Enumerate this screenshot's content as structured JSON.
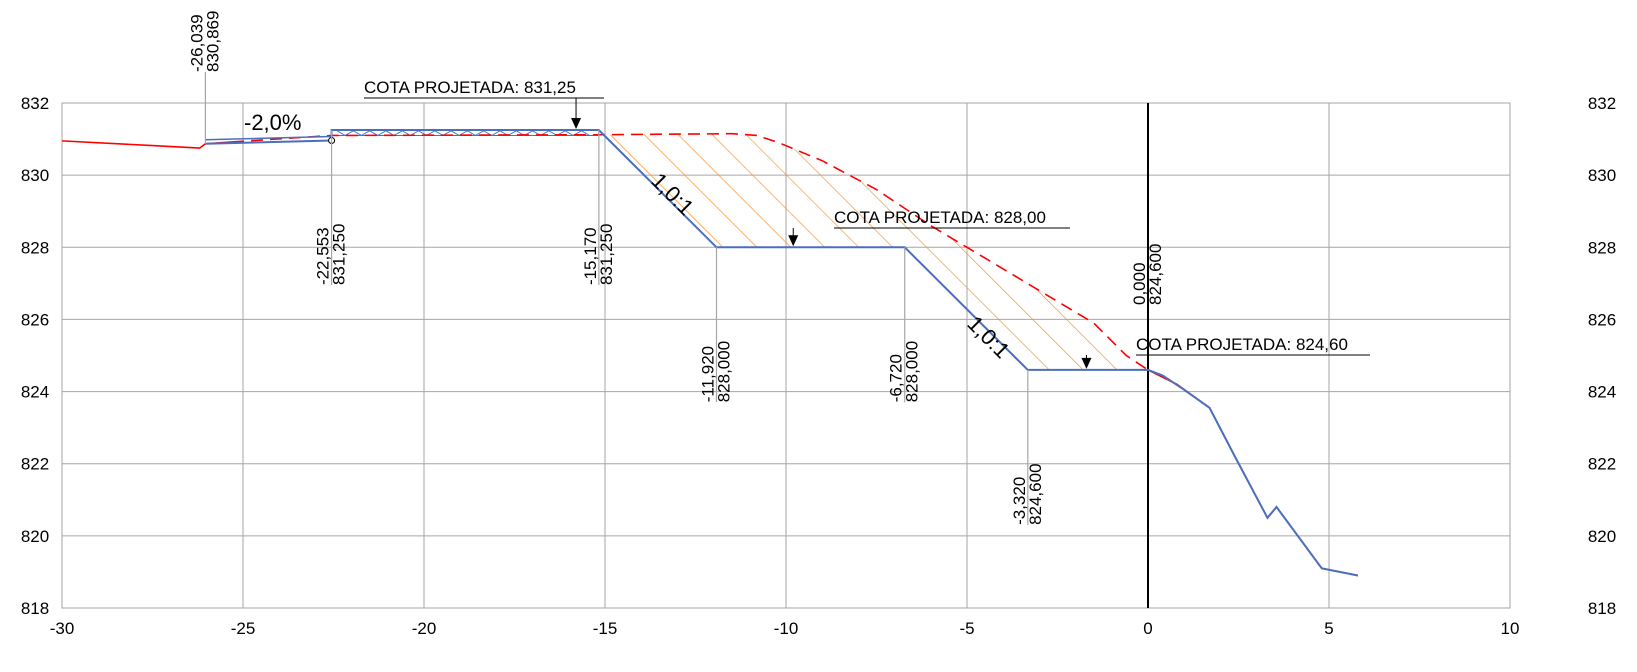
{
  "chart_data": {
    "type": "line",
    "title": "",
    "xlabel": "",
    "ylabel": "",
    "xlim": [
      -30,
      10
    ],
    "ylim": [
      818,
      832
    ],
    "grid": true,
    "x_ticks": [
      -30,
      -25,
      -20,
      -15,
      -10,
      -5,
      0,
      5,
      10
    ],
    "y_ticks": [
      818,
      820,
      822,
      824,
      826,
      828,
      830,
      832
    ],
    "series": [
      {
        "color": "#ff0000",
        "style": "solid",
        "points": [
          [
            -30,
            830.95
          ],
          [
            -27.5,
            830.82
          ],
          [
            -26.2,
            830.75
          ],
          [
            -26.039,
            830.869
          ],
          [
            -25.3,
            830.92
          ]
        ]
      },
      {
        "color": "#ff0000",
        "style": "dashed",
        "points": [
          [
            -25.3,
            830.92
          ],
          [
            -22.553,
            831.1
          ],
          [
            -15.17,
            831.12
          ],
          [
            -11.5,
            831.15
          ],
          [
            -10.8,
            831.1
          ],
          [
            -10.2,
            830.9
          ],
          [
            -9.0,
            830.4
          ],
          [
            -7.5,
            829.6
          ],
          [
            -6.0,
            828.6
          ],
          [
            -4.5,
            827.7
          ],
          [
            -3.0,
            826.8
          ],
          [
            -1.5,
            825.9
          ],
          [
            -0.6,
            825.0
          ],
          [
            0.0,
            824.6
          ]
        ]
      },
      {
        "color": "#ff0000",
        "style": "solid",
        "points": [
          [
            0.0,
            824.6
          ],
          [
            0.8,
            824.2
          ],
          [
            1.7,
            823.55
          ],
          [
            2.4,
            822.2
          ],
          [
            3.3,
            820.5
          ],
          [
            3.55,
            820.8
          ],
          [
            4.8,
            819.1
          ],
          [
            5.8,
            818.9
          ]
        ]
      },
      {
        "color": "#4a6fbf",
        "style": "solid",
        "points": [
          [
            -26.039,
            830.869
          ],
          [
            -22.553,
            830.96
          ],
          [
            -22.553,
            831.25
          ],
          [
            -15.17,
            831.25
          ],
          [
            -11.92,
            828.0
          ],
          [
            -6.72,
            828.0
          ],
          [
            -3.32,
            824.6
          ],
          [
            0.0,
            824.6
          ],
          [
            0.4,
            824.45
          ],
          [
            1.0,
            824.05
          ],
          [
            1.7,
            823.55
          ],
          [
            2.4,
            822.2
          ],
          [
            3.3,
            820.5
          ],
          [
            3.55,
            820.8
          ],
          [
            4.8,
            819.1
          ],
          [
            5.8,
            818.9
          ]
        ]
      }
    ],
    "points_labels": [
      {
        "x": -26.039,
        "y": 830.869,
        "x_label": "-26,039",
        "y_label": "830,869"
      },
      {
        "x": -22.553,
        "y": 831.25,
        "x_label": "-22,553",
        "y_label": "831,250"
      },
      {
        "x": -15.17,
        "y": 831.25,
        "x_label": "-15,170",
        "y_label": "831,250"
      },
      {
        "x": -11.92,
        "y": 828.0,
        "x_label": "-11,920",
        "y_label": "828,000"
      },
      {
        "x": -6.72,
        "y": 828.0,
        "x_label": "-6,720",
        "y_label": "828,000"
      },
      {
        "x": -3.32,
        "y": 824.6,
        "x_label": "-3,320",
        "y_label": "824,600"
      },
      {
        "x": 0.0,
        "y": 824.6,
        "x_label": "0,000",
        "y_label": "824,600"
      }
    ],
    "annotations": [
      {
        "text": "COTA PROJETADA: 831,25",
        "x": -15.8,
        "y": 831.25
      },
      {
        "text": "COTA PROJETADA: 828,00",
        "x": -9.8,
        "y": 828.0
      },
      {
        "text": "COTA PROJETADA: 824,60",
        "x": -1.7,
        "y": 824.6
      }
    ],
    "slope_labels": [
      "1,0:1",
      "1,0:1"
    ],
    "grade_label": "-2,0%",
    "axis_line_x": 0
  }
}
